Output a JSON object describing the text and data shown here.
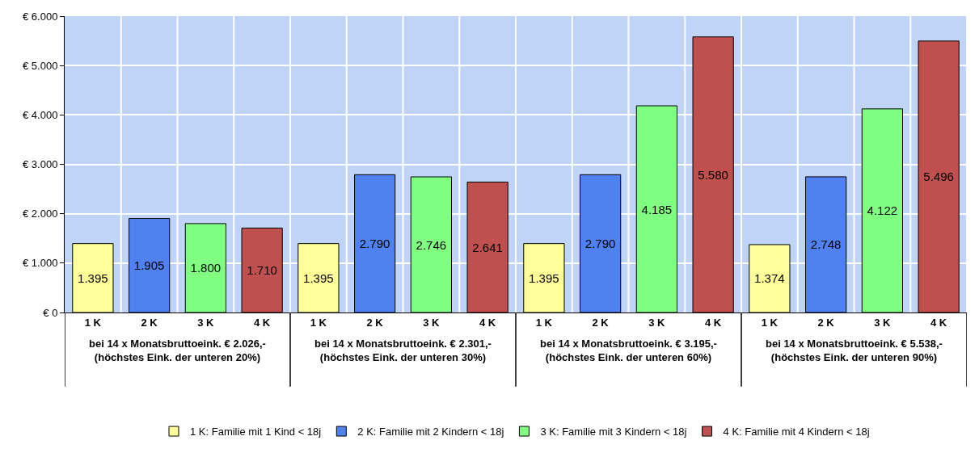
{
  "chart_data": {
    "type": "bar",
    "categories": [
      "1 K",
      "2 K",
      "3 K",
      "4 K",
      "1 K",
      "2 K",
      "3 K",
      "4 K",
      "1 K",
      "2 K",
      "3 K",
      "4 K",
      "1 K",
      "2 K",
      "3 K",
      "4 K"
    ],
    "series": [
      {
        "name": "1 K: Familie mit 1 Kind < 18j",
        "color": "#ffff99",
        "values": [
          1395,
          null,
          null,
          null,
          1395,
          null,
          null,
          null,
          1395,
          null,
          null,
          null,
          1374,
          null,
          null,
          null
        ],
        "value_labels": [
          "1.395",
          null,
          null,
          null,
          "1.395",
          null,
          null,
          null,
          "1.395",
          null,
          null,
          null,
          "1.374",
          null,
          null,
          null
        ]
      },
      {
        "name": "2 K: Familie mit 2 Kindern < 18j",
        "color": "#4f81f0",
        "values": [
          null,
          1905,
          null,
          null,
          null,
          2790,
          null,
          null,
          null,
          2790,
          null,
          null,
          null,
          2748,
          null,
          null
        ],
        "value_labels": [
          null,
          "1.905",
          null,
          null,
          null,
          "2.790",
          null,
          null,
          null,
          "2.790",
          null,
          null,
          null,
          "2.748",
          null,
          null
        ]
      },
      {
        "name": "3 K: Familie mit 3 Kindern < 18j",
        "color": "#80ff80",
        "values": [
          null,
          null,
          1800,
          null,
          null,
          null,
          2746,
          null,
          null,
          null,
          4185,
          null,
          null,
          null,
          4122,
          null
        ],
        "value_labels": [
          null,
          null,
          "1.800",
          null,
          null,
          null,
          "2.746",
          null,
          null,
          null,
          "4.185",
          null,
          null,
          null,
          "4.122",
          null
        ]
      },
      {
        "name": "4 K: Familie mit 4 Kindern < 18j",
        "color": "#c0504d",
        "values": [
          null,
          null,
          null,
          1710,
          null,
          null,
          null,
          2641,
          null,
          null,
          null,
          5580,
          null,
          null,
          null,
          5496
        ],
        "value_labels": [
          null,
          null,
          null,
          "1.710",
          null,
          null,
          null,
          "2.641",
          null,
          null,
          null,
          "5.580",
          null,
          null,
          null,
          "5.496"
        ]
      }
    ],
    "annotations": [
      "bei 14 x Monatsbruttoeink. € 2.026,-\n(höchstes Eink. der unteren 20%)",
      "bei 14 x Monatsbruttoeink. € 2.301,-\n(höchstes Eink. der unteren 30%)",
      "bei 14 x Monatsbruttoeink. € 3.195,-\n(höchstes Eink. der unteren 60%)",
      "bei 14 x Monatsbruttoeink. € 5.538,-\n(höchstes Eink. der unteren 90%)"
    ],
    "ylim": [
      0,
      6000
    ],
    "yticks": [
      {
        "value": 0,
        "label": "€ 0"
      },
      {
        "value": 1000,
        "label": "€ 1.000"
      },
      {
        "value": 2000,
        "label": "€ 2.000"
      },
      {
        "value": 3000,
        "label": "€ 3.000"
      },
      {
        "value": 4000,
        "label": "€ 4.000"
      },
      {
        "value": 5000,
        "label": "€ 5.000"
      },
      {
        "value": 6000,
        "label": "€ 6.000"
      }
    ],
    "grid": true,
    "legend": "bottom"
  }
}
